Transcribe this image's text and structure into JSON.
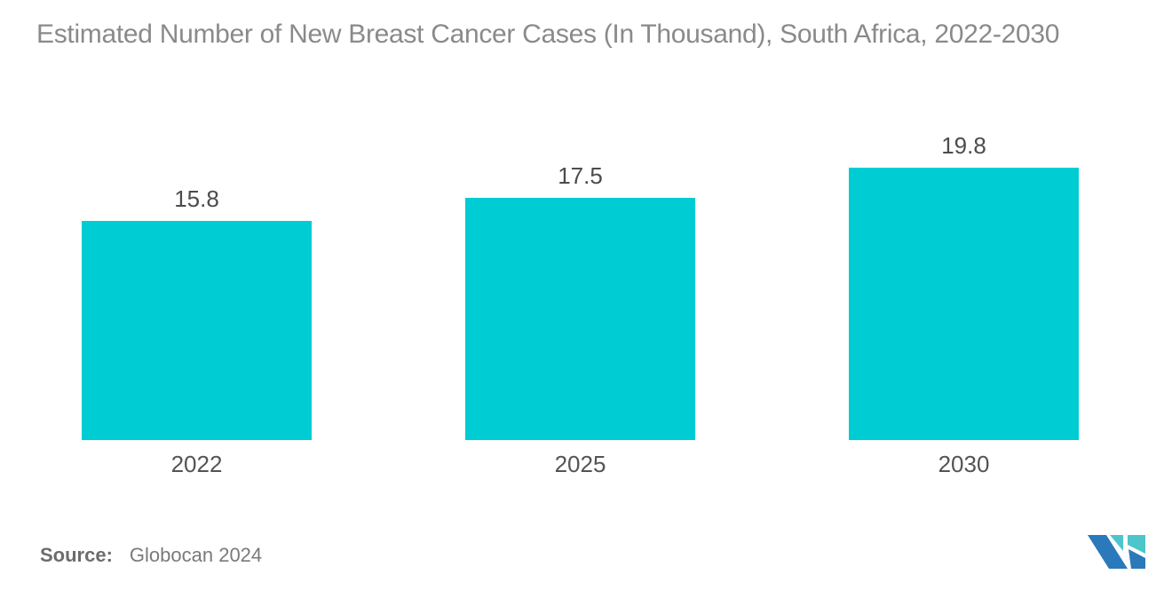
{
  "title": "Estimated Number of New Breast Cancer Cases (In Thousand), South Africa, 2022-2030",
  "source": {
    "label": "Source:",
    "text": "Globocan 2024"
  },
  "logo": {
    "name": "mordor-intelligence-logo",
    "blue": "#2a79ba",
    "teal": "#4cc5cb"
  },
  "colors": {
    "bar": "#00ccd3",
    "title_text": "#8a8a8a",
    "value_label_text": "#4c4c4c",
    "year_label_text": "#545454",
    "source_text": "#7a7a7a",
    "background": "#ffffff"
  },
  "chart_data": {
    "type": "bar",
    "title": "Estimated Number of New Breast Cancer Cases (In Thousand), South Africa, 2022-2030",
    "categories": [
      "2022",
      "2025",
      "2030"
    ],
    "values": [
      15.8,
      17.5,
      19.8
    ],
    "value_labels": [
      "15.8",
      "17.5",
      "19.8"
    ],
    "xlabel": "",
    "ylabel": "",
    "ylim": [
      0,
      19.8
    ],
    "grid": false,
    "legend": false,
    "axis_lines": false,
    "bar_color": "#00ccd3"
  }
}
